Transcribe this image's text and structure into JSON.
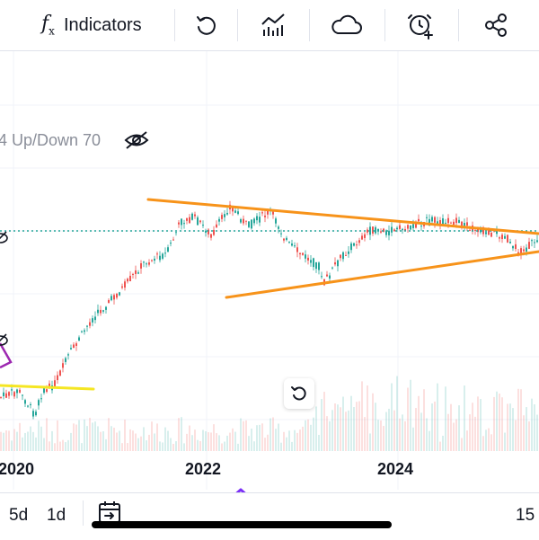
{
  "toolbar": {
    "indicators_icon": "fx-icon",
    "indicators_label": "Indicators",
    "items": [
      "undo-icon",
      "bar-pattern-icon",
      "cloud-icon",
      "alarm-add-icon",
      "share-icon"
    ]
  },
  "chart": {
    "legend_text": "4 Up/Down 70",
    "legend_icon": "eye-off-icon",
    "x_labels": [
      "2020",
      "2022",
      "2024"
    ],
    "colors": {
      "up_candle": "#26a69a",
      "down_candle": "#ef5350",
      "trendline": "#f7931a",
      "support_line": "#f5e623",
      "dotted_level": "#26a69a",
      "drawing_purple": "#9c27b0"
    }
  },
  "controls": {
    "reset_icon": "reset-icon",
    "collapse_icon": "chevron-up-icon"
  },
  "bottombar": {
    "interval_5d": "5d",
    "interval_1d": "1d",
    "date_range_icon": "calendar-goto-icon",
    "right_label": "15"
  }
}
